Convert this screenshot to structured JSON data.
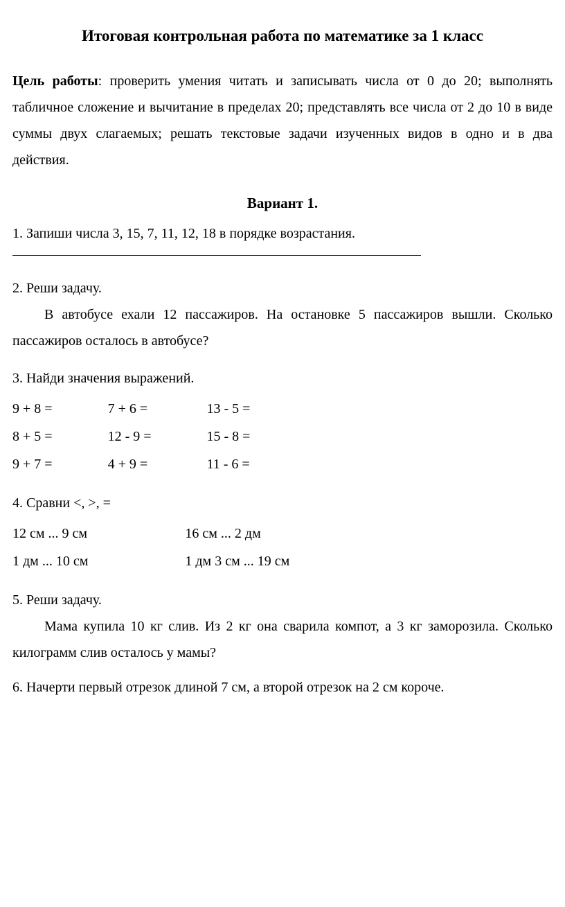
{
  "title": "Итоговая контрольная работа по математике за 1 класс",
  "goal": {
    "label": "Цель работы",
    "text": ": проверить умения читать и записывать числа от 0 до 20; выполнять табличное сложение и вычитание в пределах 20; представлять все числа от 2 до 10 в виде суммы двух слагаемых; решать текстовые задачи изученных видов в одно и в два действия."
  },
  "variant_heading": "Вариант 1.",
  "task1": {
    "prompt": "1. Запиши числа 3, 15, 7, 11, 12, 18 в порядке возрастания."
  },
  "task2": {
    "prompt": "2. Реши задачу.",
    "body": "В автобусе ехали 12 пассажиров. На остановке 5 пассажиров вышли. Сколько пассажиров осталось в автобусе?"
  },
  "task3": {
    "prompt": "3. Найди значения выражений.",
    "rows": [
      [
        "9 + 8 =",
        "7 + 6 =",
        "13 - 5 ="
      ],
      [
        "8 + 5 =",
        "12 - 9 =",
        "15 - 8 ="
      ],
      [
        "9 + 7 =",
        "4 + 9 =",
        "11 - 6 ="
      ]
    ]
  },
  "task4": {
    "prompt": "4. Сравни <,  >, =",
    "rows": [
      [
        "12 см ... 9 см",
        "16 см ... 2 дм"
      ],
      [
        "1 дм ... 10 см",
        "1 дм 3 см ... 19 см"
      ]
    ]
  },
  "task5": {
    "prompt": "5. Реши задачу.",
    "body": "Мама купила 10 кг слив. Из 2 кг она сварила компот, а  3 кг заморозила. Сколько килограмм слив осталось у мамы?"
  },
  "task6": {
    "prompt": "6. Начерти первый отрезок длиной 7 см, а второй отрезок  на 2 см короче."
  }
}
